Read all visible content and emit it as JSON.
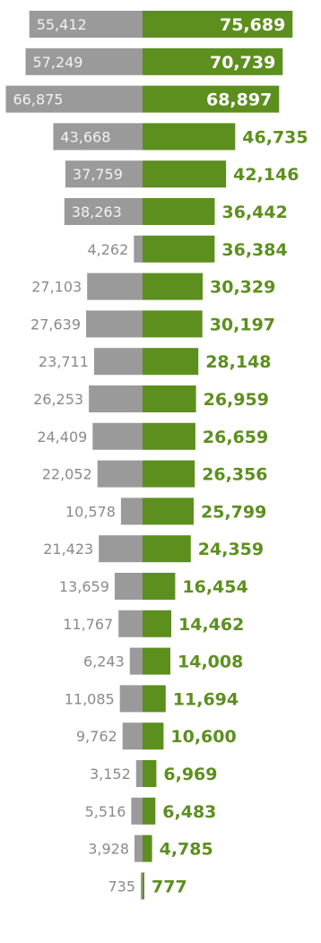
{
  "chart_data": {
    "type": "bar",
    "orientation": "horizontal-butterfly",
    "series": [
      {
        "side": "left",
        "color": "#9a9a9a",
        "values": [
          55412,
          57249,
          66875,
          43668,
          37759,
          38263,
          4262,
          27103,
          27639,
          23711,
          26253,
          24409,
          22052,
          10578,
          21423,
          13659,
          11767,
          6243,
          11085,
          9762,
          3152,
          5516,
          3928,
          735
        ],
        "labels": [
          "55,412",
          "57,249",
          "66,875",
          "43,668",
          "37,759",
          "38,263",
          "4,262",
          "27,103",
          "27,639",
          "23,711",
          "26,253",
          "24,409",
          "22,052",
          "10,578",
          "21,423",
          "13,659",
          "11,767",
          "6,243",
          "11,085",
          "9,762",
          "3,152",
          "5,516",
          "3,928",
          "735"
        ]
      },
      {
        "side": "right",
        "color": "#5c8f1e",
        "values": [
          75689,
          70739,
          68897,
          46735,
          42146,
          36442,
          36384,
          30329,
          30197,
          28148,
          26959,
          26659,
          26356,
          25799,
          24359,
          16454,
          14462,
          14008,
          11694,
          10600,
          6969,
          6483,
          4785,
          777
        ],
        "labels": [
          "75,689",
          "70,739",
          "68,897",
          "46,735",
          "42,146",
          "36,442",
          "36,384",
          "30,329",
          "30,197",
          "28,148",
          "26,959",
          "26,659",
          "26,356",
          "25,799",
          "24,359",
          "16,454",
          "14,462",
          "14,008",
          "11,694",
          "10,600",
          "6,969",
          "6,483",
          "4,785",
          "777"
        ]
      }
    ],
    "left_label_inside_bar": [
      true,
      true,
      true,
      true,
      true,
      true,
      false,
      false,
      false,
      false,
      false,
      false,
      false,
      false,
      false,
      false,
      false,
      false,
      false,
      false,
      false,
      false,
      false,
      false
    ],
    "right_label_inside_bar": [
      true,
      true,
      true,
      false,
      false,
      false,
      false,
      false,
      false,
      false,
      false,
      false,
      false,
      false,
      false,
      false,
      false,
      false,
      false,
      false,
      false,
      false,
      false,
      false
    ],
    "colors": {
      "left_bar": "#9a9a9a",
      "right_bar": "#5c8f1e",
      "left_label_inside": "#f2f2f2",
      "left_label_outside": "#8a8a8a",
      "right_label_inside": "#ffffff",
      "right_label_outside": "#5c8f1e"
    },
    "grid": false,
    "legend": "none"
  }
}
